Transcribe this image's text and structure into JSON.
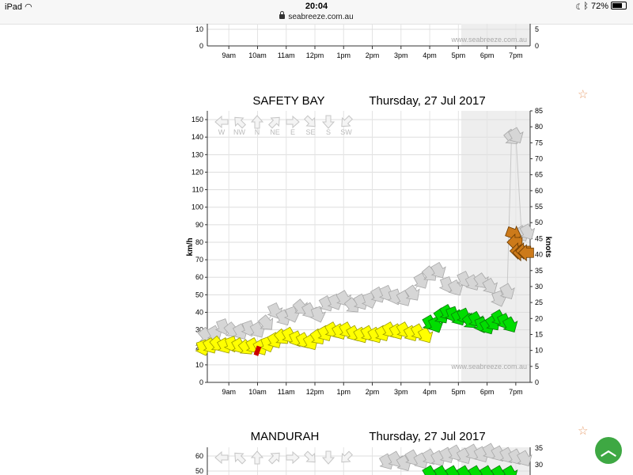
{
  "status_bar": {
    "device": "iPad",
    "time": "20:04",
    "url": "seabreeze.com.au",
    "battery": "72%",
    "battery_level": 0.72
  },
  "watermark": "www.seabreeze.com.au",
  "x_axis_labels": [
    "9am",
    "10am",
    "11am",
    "12pm",
    "1pm",
    "2pm",
    "3pm",
    "4pm",
    "5pm",
    "6pm",
    "7pm"
  ],
  "direction_legend": [
    "W",
    "NW",
    "N",
    "NE",
    "E",
    "SE",
    "S",
    "SW"
  ],
  "colors": {
    "light": "#ffff00",
    "moderate": "#00dd00",
    "strong": "#cc7a1a",
    "gust": "#d6d6d6",
    "flag": "#cc0000",
    "night_shade": "#eeeeee"
  },
  "charts": {
    "top": {
      "y_left_ticks": [
        "10",
        "0"
      ],
      "y_right_ticks": [
        "5",
        "0"
      ]
    },
    "safety_bay": {
      "location": "SAFETY BAY",
      "date": "Thursday, 27 Jul 2017",
      "y_left_label": "km/h",
      "y_right_label": "knots"
    },
    "mandurah": {
      "location": "MANDURAH",
      "date": "Thursday, 27 Jul 2017",
      "y_left_ticks": [
        "60",
        "50"
      ],
      "y_right_ticks": [
        "35",
        "30"
      ]
    }
  },
  "chart_data": {
    "type": "line",
    "title": "SAFETY BAY",
    "subtitle": "Thursday, 27 Jul 2017",
    "xlabel": "",
    "ylabel": "km/h",
    "y2label": "knots",
    "ylim": [
      0,
      155
    ],
    "y2lim": [
      0,
      85
    ],
    "y_ticks": [
      0,
      10,
      20,
      30,
      40,
      50,
      60,
      70,
      80,
      90,
      100,
      110,
      120,
      130,
      140,
      150
    ],
    "y2_ticks": [
      0,
      5,
      10,
      15,
      20,
      25,
      30,
      35,
      40,
      45,
      50,
      55,
      60,
      65,
      70,
      75,
      80,
      85
    ],
    "x_range_hours": [
      8.25,
      19.5
    ],
    "night_from_hour": 17.1,
    "grid": true,
    "series": [
      {
        "color_key": "gust",
        "x": [
          8.2,
          8.5,
          8.8,
          9.1,
          9.4,
          9.7,
          10.0,
          10.3,
          10.6,
          10.9,
          11.2,
          11.5,
          11.8,
          12.1,
          12.4,
          12.7,
          13.0,
          13.3,
          13.6,
          13.9,
          14.2,
          14.5,
          14.8,
          15.1,
          15.4,
          15.7,
          16.0,
          16.3,
          16.6,
          16.9,
          17.2,
          17.5,
          17.8,
          18.1,
          18.4,
          18.7,
          18.85,
          19.0,
          19.2,
          19.4
        ],
        "y": [
          27,
          28,
          32,
          30,
          29,
          31,
          30,
          34,
          41,
          37,
          39,
          43,
          41,
          39,
          45,
          46,
          48,
          44,
          46,
          47,
          50,
          51,
          49,
          48,
          51,
          58,
          62,
          64,
          56,
          54,
          59,
          57,
          58,
          55,
          48,
          52,
          140,
          141,
          85,
          86
        ],
        "dir": [
          140,
          150,
          160,
          140,
          150,
          160,
          150,
          140,
          155,
          150,
          160,
          140,
          150,
          160,
          150,
          155,
          150,
          140,
          150,
          160,
          150,
          155,
          160,
          150,
          145,
          150,
          140,
          150,
          160,
          150,
          155,
          150,
          145,
          150,
          160,
          150,
          140,
          150,
          150,
          150
        ]
      },
      {
        "color_key": "light",
        "x": [
          8.1,
          8.35,
          8.6,
          8.85,
          9.1,
          9.35,
          9.6,
          9.85,
          10.1,
          10.35,
          10.6,
          10.85,
          11.1,
          11.35,
          11.6,
          11.85,
          12.1,
          12.35,
          12.6,
          12.85,
          13.1,
          13.35,
          13.6,
          13.85,
          14.1,
          14.35,
          14.6,
          14.85,
          15.1,
          15.35,
          15.6,
          15.85
        ],
        "y": [
          20,
          21,
          22,
          21,
          22,
          21,
          20,
          21,
          20,
          22,
          24,
          26,
          27,
          25,
          24,
          23,
          26,
          28,
          30,
          29,
          30,
          28,
          27,
          28,
          27,
          28,
          30,
          29,
          30,
          28,
          29,
          27
        ],
        "dir": [
          160,
          150,
          140,
          150,
          160,
          150,
          140,
          150,
          150,
          160,
          150,
          140,
          150,
          155,
          150,
          150,
          145,
          150,
          150,
          150,
          150,
          150,
          150,
          150,
          150,
          150,
          150,
          150,
          150,
          150,
          150,
          150
        ]
      },
      {
        "color_key": "moderate",
        "x": [
          16.0,
          16.2,
          16.4,
          16.6,
          16.8,
          17.0,
          17.2,
          17.4,
          17.6,
          17.8,
          18.0,
          18.2,
          18.4,
          18.6,
          18.8
        ],
        "y": [
          34,
          33,
          38,
          40,
          39,
          37,
          38,
          35,
          36,
          33,
          32,
          34,
          37,
          35,
          33
        ],
        "dir": [
          150,
          155,
          145,
          150,
          160,
          150,
          155,
          140,
          150,
          160,
          150,
          145,
          150,
          155,
          150
        ]
      },
      {
        "color_key": "strong",
        "x": [
          18.9,
          19.0,
          19.1,
          19.2,
          19.3,
          19.4
        ],
        "y": [
          85,
          80,
          75,
          74,
          75,
          74
        ],
        "dir": [
          110,
          270,
          270,
          270,
          270,
          270
        ]
      }
    ]
  }
}
